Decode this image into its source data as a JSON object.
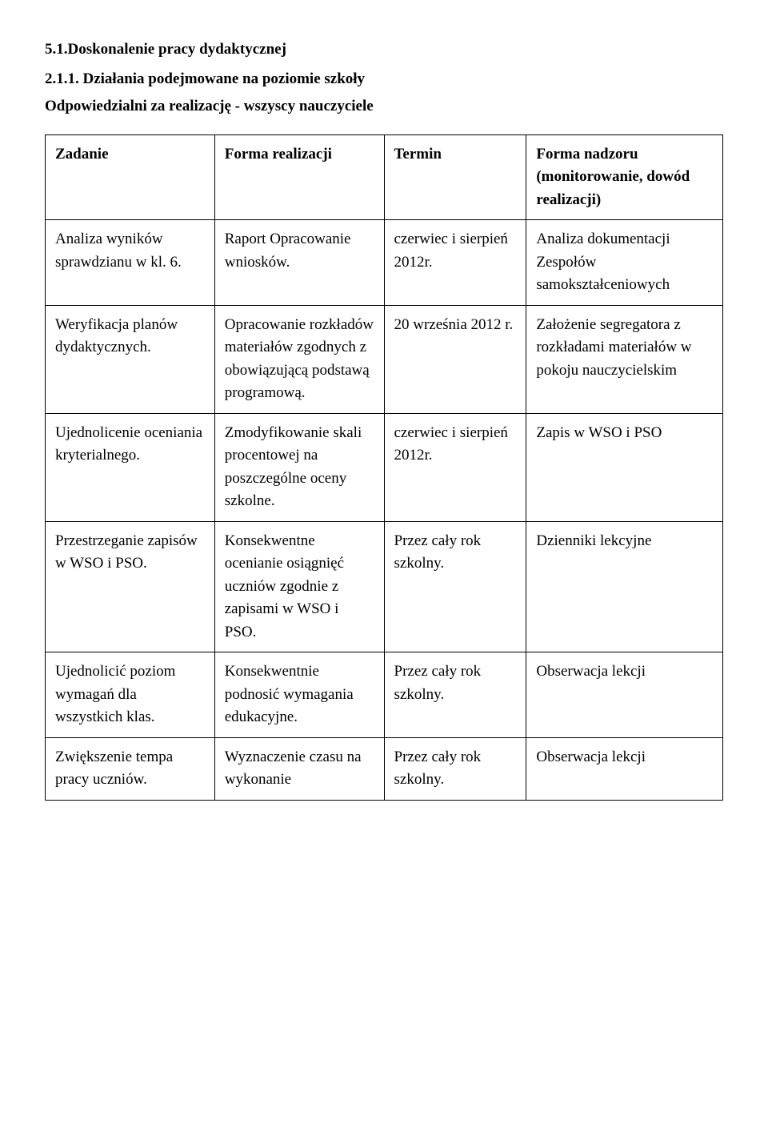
{
  "headings": {
    "h1": "5.1.Doskonalenie pracy dydaktycznej",
    "h2": "2.1.1. Działania podejmowane na poziomie szkoły",
    "subtitle": "Odpowiedzialni za realizację - wszyscy nauczyciele"
  },
  "table": {
    "border_color": "#000000",
    "background_color": "#ffffff",
    "text_color": "#000000",
    "font_family": "Times New Roman",
    "font_size_pt": 14,
    "column_widths_pct": [
      25,
      25,
      21,
      29
    ],
    "header_row": {
      "zadanie": "Zadanie",
      "forma_realizacji": "Forma realizacji",
      "termin": "Termin",
      "forma_nadzoru": "Forma nadzoru (monitorowanie, dowód realizacji)"
    },
    "rows": [
      {
        "zadanie": "Analiza wyników sprawdzianu w kl. 6.",
        "forma_realizacji": "Raport\nOpracowanie wniosków.",
        "termin": "czerwiec i sierpień 2012r.",
        "forma_nadzoru": "Analiza dokumentacji Zespołów samokształceniowych"
      },
      {
        "zadanie": "Weryfikacja planów dydaktycznych.",
        "forma_realizacji": "Opracowanie rozkładów materiałów zgodnych z obowiązującą podstawą programową.",
        "termin": "20 września 2012 r.",
        "forma_nadzoru": "Założenie segregatora z rozkładami materiałów w pokoju nauczycielskim"
      },
      {
        "zadanie": "Ujednolicenie oceniania kryterialnego.",
        "forma_realizacji": "Zmodyfikowanie skali procentowej na poszczególne oceny szkolne.",
        "termin": "czerwiec i sierpień 2012r.",
        "forma_nadzoru": "Zapis w WSO i PSO"
      },
      {
        "zadanie": "Przestrzeganie zapisów w WSO i PSO.",
        "forma_realizacji": "Konsekwentne ocenianie osiągnięć uczniów zgodnie z zapisami w WSO i PSO.",
        "termin": "Przez cały rok szkolny.",
        "forma_nadzoru": "Dzienniki lekcyjne"
      },
      {
        "zadanie": "Ujednolicić poziom wymagań dla wszystkich klas.",
        "forma_realizacji": "Konsekwentnie podnosić wymagania edukacyjne.",
        "termin": "Przez cały rok szkolny.",
        "forma_nadzoru": "Obserwacja lekcji"
      },
      {
        "zadanie": "Zwiększenie tempa pracy uczniów.",
        "forma_realizacji": "Wyznaczenie czasu na wykonanie",
        "termin": "Przez cały rok szkolny.",
        "forma_nadzoru": "Obserwacja lekcji"
      }
    ]
  }
}
